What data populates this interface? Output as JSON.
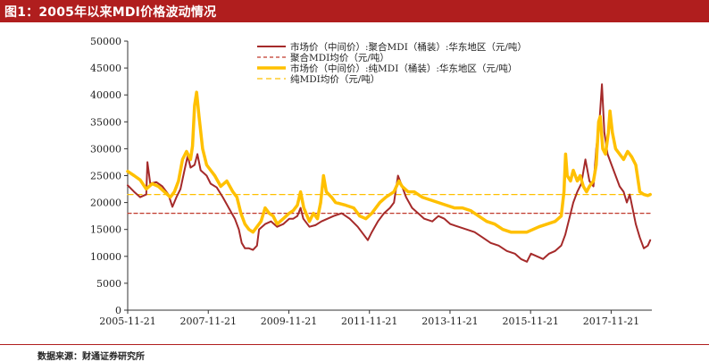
{
  "header": {
    "title": "图1：2005年以来MDI价格波动情况"
  },
  "footer": {
    "source": "数据来源：财通证券研究所"
  },
  "colors": {
    "title_bg": "#b01e1e",
    "polymeric": "#a52a2a",
    "polymeric_avg": "#c0392b",
    "pure": "#ffc000",
    "pure_avg": "#ffc000"
  },
  "chart_data": {
    "type": "line",
    "title": "2005年以来MDI价格波动情况",
    "xlabel": "",
    "ylabel": "",
    "ylim": [
      0,
      50000
    ],
    "yticks": [
      0,
      5000,
      10000,
      15000,
      20000,
      25000,
      30000,
      35000,
      40000,
      45000,
      50000
    ],
    "xlim": [
      2005.89,
      2018.9
    ],
    "xticks": [
      2005.89,
      2007.89,
      2009.89,
      2011.89,
      2013.89,
      2015.89,
      2017.89
    ],
    "xtick_labels": [
      "2005-11-21",
      "2007-11-21",
      "2009-11-21",
      "2011-11-21",
      "2013-11-21",
      "2015-11-21",
      "2017-11-21"
    ],
    "legend_position": "top-center",
    "series": [
      {
        "name": "市场价（中间价）:聚合MDI（桶装）:华东地区（元/吨）",
        "style": "solid-thin",
        "points": [
          [
            2005.89,
            23200
          ],
          [
            2006.05,
            22000
          ],
          [
            2006.2,
            21000
          ],
          [
            2006.35,
            21500
          ],
          [
            2006.38,
            27500
          ],
          [
            2006.45,
            23500
          ],
          [
            2006.6,
            23800
          ],
          [
            2006.75,
            23000
          ],
          [
            2006.9,
            21500
          ],
          [
            2007.0,
            19200
          ],
          [
            2007.1,
            21000
          ],
          [
            2007.2,
            22500
          ],
          [
            2007.3,
            26000
          ],
          [
            2007.38,
            28700
          ],
          [
            2007.45,
            26500
          ],
          [
            2007.55,
            27000
          ],
          [
            2007.62,
            29000
          ],
          [
            2007.7,
            26000
          ],
          [
            2007.85,
            25000
          ],
          [
            2007.95,
            23500
          ],
          [
            2008.1,
            22800
          ],
          [
            2008.25,
            21000
          ],
          [
            2008.4,
            19000
          ],
          [
            2008.55,
            17000
          ],
          [
            2008.65,
            15000
          ],
          [
            2008.72,
            12500
          ],
          [
            2008.8,
            11500
          ],
          [
            2008.9,
            11500
          ],
          [
            2009.0,
            11200
          ],
          [
            2009.1,
            12000
          ],
          [
            2009.15,
            15000
          ],
          [
            2009.3,
            16000
          ],
          [
            2009.45,
            16500
          ],
          [
            2009.6,
            15500
          ],
          [
            2009.75,
            16000
          ],
          [
            2009.9,
            17000
          ],
          [
            2010.0,
            17000
          ],
          [
            2010.1,
            17500
          ],
          [
            2010.18,
            19000
          ],
          [
            2010.25,
            17000
          ],
          [
            2010.4,
            15500
          ],
          [
            2010.55,
            15800
          ],
          [
            2010.7,
            16500
          ],
          [
            2010.85,
            17000
          ],
          [
            2011.0,
            17500
          ],
          [
            2011.2,
            18000
          ],
          [
            2011.4,
            17000
          ],
          [
            2011.6,
            15500
          ],
          [
            2011.75,
            14000
          ],
          [
            2011.85,
            13000
          ],
          [
            2011.95,
            14500
          ],
          [
            2012.1,
            16500
          ],
          [
            2012.25,
            18000
          ],
          [
            2012.4,
            19000
          ],
          [
            2012.5,
            20000
          ],
          [
            2012.6,
            25000
          ],
          [
            2012.7,
            23000
          ],
          [
            2012.8,
            21000
          ],
          [
            2012.95,
            19000
          ],
          [
            2013.1,
            18000
          ],
          [
            2013.25,
            17000
          ],
          [
            2013.45,
            16500
          ],
          [
            2013.6,
            17500
          ],
          [
            2013.75,
            17000
          ],
          [
            2013.9,
            16000
          ],
          [
            2014.1,
            15500
          ],
          [
            2014.3,
            15000
          ],
          [
            2014.5,
            14500
          ],
          [
            2014.7,
            13500
          ],
          [
            2014.9,
            12500
          ],
          [
            2015.1,
            12000
          ],
          [
            2015.3,
            11000
          ],
          [
            2015.5,
            10500
          ],
          [
            2015.65,
            9500
          ],
          [
            2015.8,
            9000
          ],
          [
            2015.9,
            10500
          ],
          [
            2016.05,
            10000
          ],
          [
            2016.2,
            9500
          ],
          [
            2016.35,
            10500
          ],
          [
            2016.5,
            11000
          ],
          [
            2016.65,
            12000
          ],
          [
            2016.75,
            14000
          ],
          [
            2016.85,
            17000
          ],
          [
            2016.95,
            20000
          ],
          [
            2017.05,
            22000
          ],
          [
            2017.15,
            23500
          ],
          [
            2017.25,
            28000
          ],
          [
            2017.35,
            24000
          ],
          [
            2017.45,
            23000
          ],
          [
            2017.52,
            30000
          ],
          [
            2017.6,
            35000
          ],
          [
            2017.66,
            42000
          ],
          [
            2017.72,
            33000
          ],
          [
            2017.8,
            29000
          ],
          [
            2017.9,
            27000
          ],
          [
            2018.0,
            25000
          ],
          [
            2018.1,
            23000
          ],
          [
            2018.2,
            22000
          ],
          [
            2018.28,
            20000
          ],
          [
            2018.35,
            21500
          ],
          [
            2018.42,
            19000
          ],
          [
            2018.5,
            16000
          ],
          [
            2018.6,
            13500
          ],
          [
            2018.7,
            11500
          ],
          [
            2018.8,
            12000
          ],
          [
            2018.86,
            13000
          ]
        ]
      },
      {
        "name": "聚合MDI均价（元/吨）",
        "style": "dashed-thin",
        "points": [
          [
            2005.89,
            18000
          ],
          [
            2018.9,
            18000
          ]
        ]
      },
      {
        "name": "市场价（中间价）:纯MDI（桶装）:华东地区（元/吨）",
        "style": "solid-thick",
        "points": [
          [
            2005.89,
            25800
          ],
          [
            2006.05,
            25000
          ],
          [
            2006.2,
            24200
          ],
          [
            2006.35,
            22500
          ],
          [
            2006.5,
            23500
          ],
          [
            2006.65,
            23000
          ],
          [
            2006.8,
            22000
          ],
          [
            2006.95,
            21000
          ],
          [
            2007.05,
            22000
          ],
          [
            2007.15,
            24000
          ],
          [
            2007.25,
            28000
          ],
          [
            2007.35,
            29500
          ],
          [
            2007.45,
            28000
          ],
          [
            2007.5,
            30500
          ],
          [
            2007.55,
            38000
          ],
          [
            2007.6,
            40500
          ],
          [
            2007.66,
            36000
          ],
          [
            2007.75,
            30000
          ],
          [
            2007.85,
            27000
          ],
          [
            2007.95,
            26000
          ],
          [
            2008.05,
            25000
          ],
          [
            2008.2,
            23000
          ],
          [
            2008.35,
            24000
          ],
          [
            2008.5,
            22000
          ],
          [
            2008.6,
            21000
          ],
          [
            2008.7,
            18000
          ],
          [
            2008.8,
            16000
          ],
          [
            2008.9,
            15000
          ],
          [
            2009.0,
            14500
          ],
          [
            2009.1,
            15500
          ],
          [
            2009.2,
            16500
          ],
          [
            2009.3,
            19000
          ],
          [
            2009.4,
            18000
          ],
          [
            2009.5,
            17500
          ],
          [
            2009.6,
            16000
          ],
          [
            2009.75,
            17000
          ],
          [
            2009.9,
            18000
          ],
          [
            2010.0,
            18500
          ],
          [
            2010.1,
            19500
          ],
          [
            2010.18,
            22000
          ],
          [
            2010.26,
            19000
          ],
          [
            2010.4,
            16500
          ],
          [
            2010.5,
            18000
          ],
          [
            2010.6,
            17000
          ],
          [
            2010.68,
            20000
          ],
          [
            2010.75,
            25000
          ],
          [
            2010.82,
            22000
          ],
          [
            2010.95,
            21000
          ],
          [
            2011.05,
            20000
          ],
          [
            2011.3,
            19500
          ],
          [
            2011.5,
            19000
          ],
          [
            2011.65,
            17500
          ],
          [
            2011.8,
            17000
          ],
          [
            2011.95,
            18000
          ],
          [
            2012.15,
            20000
          ],
          [
            2012.3,
            21000
          ],
          [
            2012.5,
            22000
          ],
          [
            2012.62,
            24000
          ],
          [
            2012.7,
            23000
          ],
          [
            2012.85,
            22000
          ],
          [
            2013.0,
            22000
          ],
          [
            2013.2,
            21000
          ],
          [
            2013.4,
            20500
          ],
          [
            2013.6,
            20000
          ],
          [
            2013.8,
            19500
          ],
          [
            2014.0,
            19000
          ],
          [
            2014.2,
            19000
          ],
          [
            2014.4,
            18500
          ],
          [
            2014.6,
            17500
          ],
          [
            2014.8,
            16500
          ],
          [
            2015.0,
            16000
          ],
          [
            2015.2,
            15000
          ],
          [
            2015.4,
            14500
          ],
          [
            2015.6,
            14500
          ],
          [
            2015.8,
            14500
          ],
          [
            2015.95,
            15000
          ],
          [
            2016.1,
            15500
          ],
          [
            2016.3,
            16000
          ],
          [
            2016.5,
            16500
          ],
          [
            2016.65,
            17500
          ],
          [
            2016.72,
            22000
          ],
          [
            2016.76,
            29000
          ],
          [
            2016.8,
            25000
          ],
          [
            2016.88,
            24000
          ],
          [
            2016.95,
            26000
          ],
          [
            2017.05,
            24000
          ],
          [
            2017.12,
            25000
          ],
          [
            2017.2,
            23000
          ],
          [
            2017.28,
            22000
          ],
          [
            2017.35,
            23000
          ],
          [
            2017.45,
            24000
          ],
          [
            2017.52,
            27000
          ],
          [
            2017.58,
            35000
          ],
          [
            2017.62,
            36000
          ],
          [
            2017.68,
            30000
          ],
          [
            2017.75,
            29000
          ],
          [
            2017.82,
            33000
          ],
          [
            2017.86,
            37000
          ],
          [
            2017.92,
            33000
          ],
          [
            2018.0,
            30000
          ],
          [
            2018.1,
            29000
          ],
          [
            2018.2,
            28000
          ],
          [
            2018.3,
            29500
          ],
          [
            2018.4,
            28500
          ],
          [
            2018.5,
            27000
          ],
          [
            2018.6,
            22000
          ],
          [
            2018.7,
            21500
          ],
          [
            2018.8,
            21300
          ],
          [
            2018.86,
            21500
          ]
        ]
      },
      {
        "name": "纯MDI均价（元/吨）",
        "style": "dashed-thin",
        "points": [
          [
            2005.89,
            21500
          ],
          [
            2018.9,
            21500
          ]
        ]
      }
    ]
  }
}
